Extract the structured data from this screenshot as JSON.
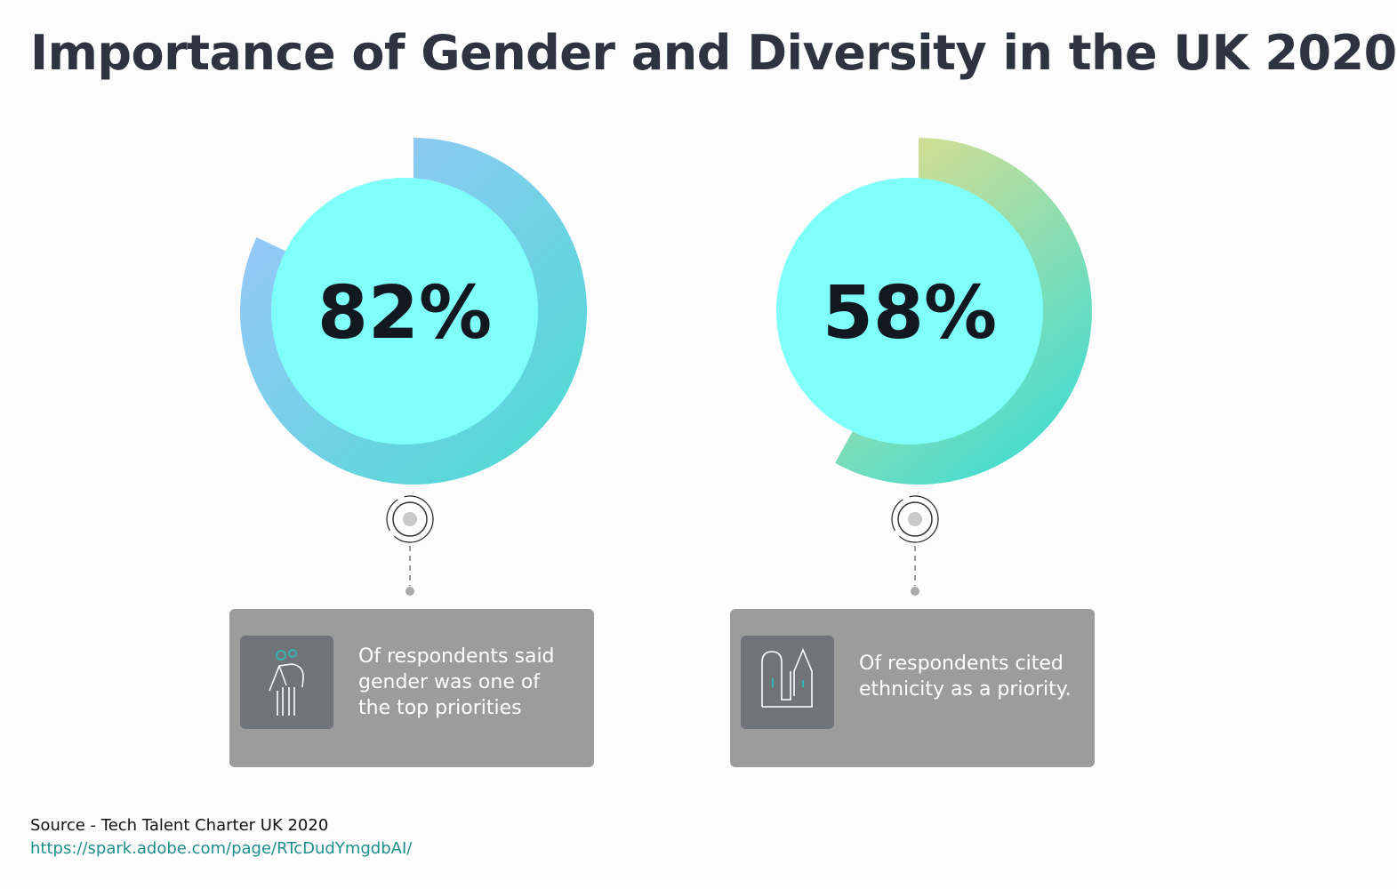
{
  "title": "Importance of Gender and Diversity in the UK 2020",
  "colors": {
    "inner_circle": "#7ffff9",
    "ring1_start": "#a3c4ff",
    "ring1_end": "#48dcd0",
    "ring2_start": "#e8df88",
    "ring2_end": "#48dcd0",
    "card_bg": "#9c9c9c",
    "icon_bg": "#707378",
    "accent": "#1f8f8a"
  },
  "chart_data": [
    {
      "type": "pie",
      "value": 82,
      "label": "82%",
      "caption": "Of respondents said gender was one of the top priorities",
      "icon": "gender-person-icon"
    },
    {
      "type": "pie",
      "value": 58,
      "label": "58%",
      "caption": "Of respondents cited ethnicity as a priority.",
      "icon": "ethnicity-buildings-icon"
    }
  ],
  "source": {
    "text": "Source - Tech Talent Charter UK 2020",
    "url": "https://spark.adobe.com/page/RTcDudYmgdbAI/"
  }
}
